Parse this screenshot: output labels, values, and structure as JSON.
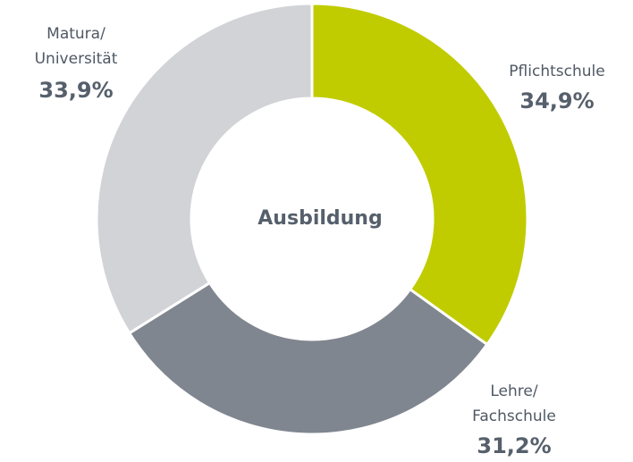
{
  "chart_data": {
    "type": "donut",
    "title": "Ausbildung",
    "categories": [
      "Pflichtschule",
      "Lehre/\nFachschule",
      "Matura/\nUniversität"
    ],
    "values": [
      34.9,
      31.2,
      33.9
    ],
    "value_labels": [
      "34,9%",
      "31,2%",
      "33,9%"
    ],
    "colors": [
      "#c0cc00",
      "#80868f",
      "#d2d3d6"
    ]
  }
}
